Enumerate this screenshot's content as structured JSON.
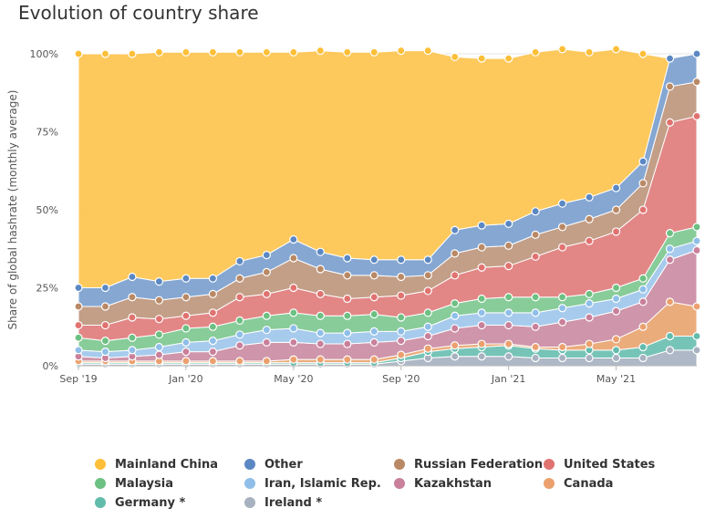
{
  "chart_data": {
    "type": "area",
    "stacked": true,
    "title": "Evolution of country share",
    "ylabel": "Share of global hashrate (monthly average)",
    "ylim": [
      0,
      100
    ],
    "y_ticks": [
      "0%",
      "25%",
      "50%",
      "75%",
      "100%"
    ],
    "x_tick_labels": [
      "Sep '19",
      "Jan '20",
      "May '20",
      "Sep '20",
      "Jan '21",
      "May '21"
    ],
    "x_tick_indices": [
      0,
      4,
      8,
      12,
      16,
      20
    ],
    "x": [
      "Sep '19",
      "Oct '19",
      "Nov '19",
      "Dec '19",
      "Jan '20",
      "Feb '20",
      "Mar '20",
      "Apr '20",
      "May '20",
      "Jun '20",
      "Jul '20",
      "Aug '20",
      "Sep '20",
      "Oct '20",
      "Nov '20",
      "Dec '20",
      "Jan '21",
      "Feb '21",
      "Mar '21",
      "Apr '21",
      "May '21",
      "Jun '21",
      "Jul '21",
      "Aug '21"
    ],
    "grid": true,
    "legend_position": "bottom",
    "series": [
      {
        "name": "Ireland *",
        "color": "#aab4c3",
        "values": [
          0.5,
          0.5,
          0.5,
          0.5,
          0.5,
          0.5,
          0.5,
          0.5,
          0.5,
          0.5,
          0.5,
          0.5,
          1.5,
          2.5,
          3.0,
          3.0,
          3.0,
          2.5,
          2.5,
          2.5,
          2.5,
          2.5,
          5.0,
          5.0
        ]
      },
      {
        "name": "Germany *",
        "color": "#6fc1b3",
        "values": [
          0.5,
          0.5,
          0.5,
          0.5,
          0.5,
          0.5,
          0.5,
          0.5,
          0.5,
          0.5,
          0.5,
          0.5,
          1.0,
          2.0,
          2.5,
          3.0,
          3.5,
          3.0,
          2.5,
          2.5,
          2.5,
          3.5,
          4.5,
          4.5
        ]
      },
      {
        "name": "Canada",
        "color": "#eaa875",
        "values": [
          0.5,
          0.5,
          0.5,
          0.5,
          0.5,
          0.5,
          0.5,
          0.5,
          1.0,
          1.0,
          1.0,
          1.0,
          1.0,
          1.0,
          1.0,
          1.0,
          0.5,
          0.5,
          1.0,
          2.0,
          3.5,
          6.5,
          11.0,
          9.5
        ]
      },
      {
        "name": "Kazakhstan",
        "color": "#cc8fa5",
        "values": [
          1.5,
          1.0,
          1.5,
          2.0,
          3.0,
          3.0,
          5.0,
          6.0,
          5.5,
          5.0,
          5.0,
          5.5,
          4.5,
          4.0,
          5.5,
          6.0,
          6.0,
          6.5,
          8.0,
          8.5,
          9.0,
          8.0,
          13.5,
          18.0
        ]
      },
      {
        "name": "Iran, Islamic Rep.",
        "color": "#a2c8ec",
        "values": [
          2.0,
          2.0,
          2.0,
          2.5,
          3.0,
          3.5,
          3.5,
          4.0,
          4.5,
          3.5,
          3.5,
          3.5,
          3.0,
          3.0,
          4.0,
          4.0,
          4.0,
          4.5,
          4.5,
          4.5,
          4.0,
          4.0,
          3.5,
          3.0
        ]
      },
      {
        "name": "Malaysia",
        "color": "#82c995",
        "values": [
          4.0,
          3.5,
          4.0,
          4.0,
          4.5,
          4.5,
          4.5,
          4.5,
          5.0,
          5.5,
          5.5,
          5.5,
          4.5,
          4.5,
          4.0,
          4.5,
          5.0,
          5.0,
          3.5,
          3.0,
          3.5,
          3.5,
          5.0,
          4.5
        ]
      },
      {
        "name": "United States",
        "color": "#e0817f",
        "values": [
          4.0,
          5.0,
          6.5,
          5.0,
          4.0,
          4.5,
          7.5,
          7.0,
          8.0,
          7.0,
          5.5,
          5.5,
          7.0,
          7.0,
          9.0,
          10.0,
          10.0,
          13.0,
          16.0,
          17.0,
          18.0,
          22.0,
          35.5,
          35.5
        ]
      },
      {
        "name": "Russian Federation",
        "color": "#c09a82",
        "values": [
          6.0,
          6.0,
          6.5,
          6.0,
          6.0,
          6.0,
          6.0,
          7.0,
          9.5,
          8.0,
          7.5,
          7.0,
          6.0,
          5.0,
          7.0,
          6.5,
          6.5,
          7.0,
          6.5,
          7.0,
          7.0,
          8.5,
          11.5,
          11.0
        ]
      },
      {
        "name": "Other",
        "color": "#7ea2d0",
        "values": [
          6.0,
          6.0,
          6.5,
          6.0,
          6.0,
          5.0,
          5.5,
          5.5,
          6.0,
          5.5,
          5.5,
          5.0,
          5.5,
          5.0,
          7.5,
          7.0,
          7.0,
          7.5,
          7.5,
          7.0,
          7.0,
          7.0,
          9.0,
          9.0
        ]
      },
      {
        "name": "Mainland China",
        "color": "#fdc654",
        "values": [
          75.0,
          75.0,
          71.5,
          73.5,
          72.5,
          72.5,
          67.0,
          65.0,
          60.0,
          64.5,
          66.0,
          66.5,
          67.0,
          67.0,
          55.5,
          53.5,
          53.0,
          51.0,
          49.5,
          46.5,
          44.5,
          34.5,
          0,
          0
        ]
      }
    ]
  },
  "legend_order": [
    "Mainland China",
    "Other",
    "Russian Federation",
    "United States",
    "Malaysia",
    "Iran, Islamic Rep.",
    "Kazakhstan",
    "Canada",
    "Germany *",
    "Ireland *"
  ],
  "colors": {
    "Mainland China": "#fdbf38",
    "Other": "#5b88c3",
    "Russian Federation": "#b98965",
    "United States": "#e07370",
    "Malaysia": "#6cc082",
    "Iran, Islamic Rep.": "#8fbfe9",
    "Kazakhstan": "#c9809b",
    "Canada": "#eba06e",
    "Germany *": "#62bcac",
    "Ireland *": "#a7b1c0"
  }
}
